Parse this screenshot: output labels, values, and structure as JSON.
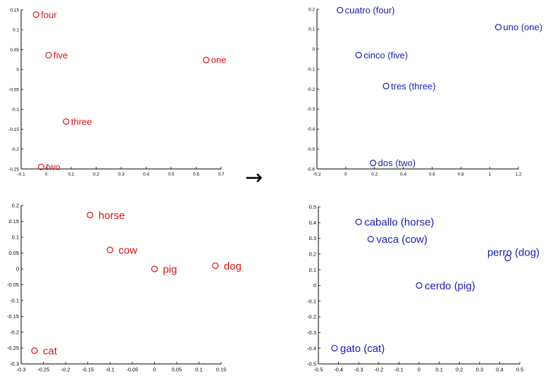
{
  "arrow": "→",
  "chart_data": [
    {
      "type": "scatter",
      "panel": "top-left",
      "color": "#dd1111",
      "xlim": [
        -0.1,
        0.7
      ],
      "ylim": [
        -0.25,
        0.15
      ],
      "x_ticks": [
        -0.1,
        0,
        0.1,
        0.2,
        0.3,
        0.4,
        0.5,
        0.6,
        0.7
      ],
      "x_tick_labels": [
        "-0.1",
        "0",
        "0.1",
        "0.2",
        "0.3",
        "0.4",
        "0.5",
        "0.6",
        "0.7"
      ],
      "y_ticks": [
        -0.25,
        -0.2,
        -0.15,
        -0.1,
        -0.05,
        0,
        0.05,
        0.1,
        0.15
      ],
      "y_tick_labels": [
        "-0.25",
        "-0.2",
        "-0.15",
        "-0.1",
        "-0.05",
        "0",
        "0.05",
        "0.1",
        "0.15"
      ],
      "points": [
        {
          "label": "four",
          "x": -0.04,
          "y": 0.138
        },
        {
          "label": "five",
          "x": 0.01,
          "y": 0.036
        },
        {
          "label": "one",
          "x": 0.64,
          "y": 0.024
        },
        {
          "label": "three",
          "x": 0.08,
          "y": -0.131
        },
        {
          "label": "two",
          "x": -0.02,
          "y": -0.245
        }
      ]
    },
    {
      "type": "scatter",
      "panel": "top-right",
      "color": "#1a1ab8",
      "xlim": [
        -0.2,
        1.2
      ],
      "ylim": [
        -0.6,
        0.2
      ],
      "x_ticks": [
        -0.2,
        0,
        0.2,
        0.4,
        0.6,
        0.8,
        1,
        1.2
      ],
      "x_tick_labels": [
        "-0.2",
        "0",
        "0.2",
        "0.4",
        "0.6",
        "0.8",
        "1",
        "1.2"
      ],
      "y_ticks": [
        -0.6,
        -0.5,
        -0.4,
        -0.3,
        -0.2,
        -0.1,
        0,
        0.1,
        0.2
      ],
      "y_tick_labels": [
        "-0.6",
        "-0.5",
        "-0.4",
        "-0.3",
        "-0.2",
        "-0.1",
        "0",
        "0.1",
        "0.2"
      ],
      "points": [
        {
          "label": "cuatro (four)",
          "x": -0.04,
          "y": 0.195
        },
        {
          "label": "uno (one)",
          "x": 1.06,
          "y": 0.11
        },
        {
          "label": "cinco (five)",
          "x": 0.09,
          "y": -0.03
        },
        {
          "label": "tres (three)",
          "x": 0.28,
          "y": -0.185
        },
        {
          "label": "dos (two)",
          "x": 0.19,
          "y": -0.57
        }
      ]
    },
    {
      "type": "scatter",
      "panel": "bottom-left",
      "color": "#dd1111",
      "xlim": [
        -0.3,
        0.15
      ],
      "ylim": [
        -0.3,
        0.2
      ],
      "x_ticks": [
        -0.3,
        -0.25,
        -0.2,
        -0.15,
        -0.1,
        -0.05,
        0,
        0.05,
        0.1,
        0.15
      ],
      "x_tick_labels": [
        "-0.3",
        "-0.25",
        "-0.2",
        "-0.15",
        "-0.1",
        "-0.05",
        "0",
        "0.05",
        "0.1",
        "0.15"
      ],
      "y_ticks": [
        -0.3,
        -0.25,
        -0.2,
        -0.15,
        -0.1,
        -0.05,
        0,
        0.05,
        0.1,
        0.15,
        0.2
      ],
      "y_tick_labels": [
        "-0.3",
        "-0.25",
        "-0.2",
        "-0.15",
        "-0.1",
        "-0.05",
        "0",
        "0.05",
        "0.1",
        "0.15",
        "0.2"
      ],
      "points": [
        {
          "label": "horse",
          "x": -0.145,
          "y": 0.17
        },
        {
          "label": "cow",
          "x": -0.1,
          "y": 0.06
        },
        {
          "label": "pig",
          "x": 0.0,
          "y": 0.0
        },
        {
          "label": "dog",
          "x": 0.137,
          "y": 0.01
        },
        {
          "label": "cat",
          "x": -0.27,
          "y": -0.258
        }
      ]
    },
    {
      "type": "scatter",
      "panel": "bottom-right",
      "color": "#1a1ab8",
      "xlim": [
        -0.5,
        0.5
      ],
      "ylim": [
        -0.5,
        0.5
      ],
      "x_ticks": [
        -0.5,
        -0.4,
        -0.3,
        -0.2,
        -0.1,
        0,
        0.1,
        0.2,
        0.3,
        0.4,
        0.5
      ],
      "x_tick_labels": [
        "-0.5",
        "-0.4",
        "-0.3",
        "-0.2",
        "-0.1",
        "0",
        "0.1",
        "0.2",
        "0.3",
        "0.4",
        "0.5"
      ],
      "y_ticks": [
        -0.5,
        -0.4,
        -0.3,
        -0.2,
        -0.1,
        0,
        0.1,
        0.2,
        0.3,
        0.4,
        0.5
      ],
      "y_tick_labels": [
        "-0.5",
        "-0.4",
        "-0.3",
        "-0.2",
        "-0.1",
        "0",
        "0.1",
        "0.2",
        "0.3",
        "0.4",
        "0.5"
      ],
      "points": [
        {
          "label": "caballo (horse)",
          "x": -0.3,
          "y": 0.405
        },
        {
          "label": "vaca (cow)",
          "x": -0.24,
          "y": 0.295
        },
        {
          "label": "perro (dog)",
          "x": 0.44,
          "y": 0.175
        },
        {
          "label": "cerdo (pig)",
          "x": 0.0,
          "y": 0.0
        },
        {
          "label": "gato (cat)",
          "x": -0.42,
          "y": -0.4
        }
      ]
    }
  ]
}
